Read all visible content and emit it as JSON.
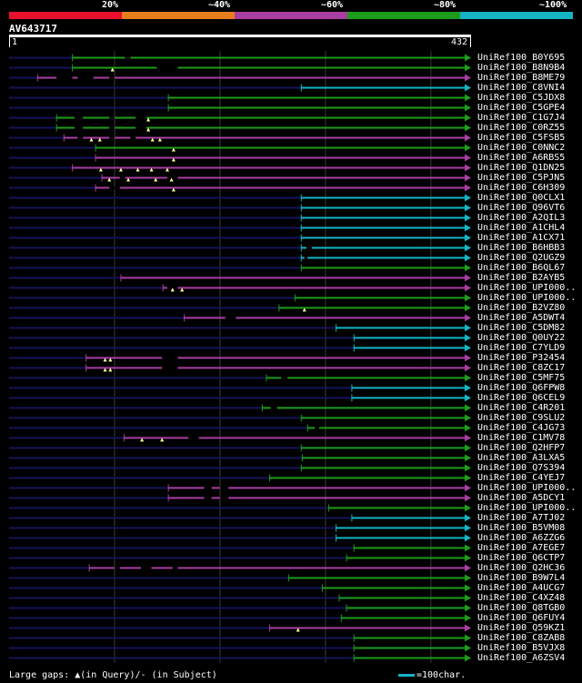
{
  "legend": {
    "colors": [
      "#e8102c",
      "#e87d1e",
      "#a93ea2",
      "#1d9c1d",
      "#14b4c4"
    ],
    "labels": [
      "20%",
      "~40%",
      "~60%",
      "~80%",
      "~100%"
    ]
  },
  "query": {
    "id": "AV643717",
    "start": "1",
    "end": "432",
    "length": 432
  },
  "colors": {
    "magenta": "#a93ea2",
    "green": "#1d9c1d",
    "cyan": "#14b4c4",
    "background_line": "#14145a",
    "gridline": "#3a3a3a",
    "gap_marker": "#ffff99"
  },
  "hits": [
    {
      "name": "UniRef100_B0Y695",
      "color": "green",
      "start": 60,
      "end": 432,
      "gaps_subject": [
        [
          110,
          115
        ]
      ],
      "gaps_query": []
    },
    {
      "name": "UniRef100_B8N9B4",
      "color": "green",
      "start": 60,
      "end": 432,
      "gaps_subject": [
        [
          140,
          160
        ]
      ],
      "gaps_query": [
        98
      ]
    },
    {
      "name": "UniRef100_B8ME79",
      "color": "magenta",
      "start": 27,
      "end": 432,
      "gaps_subject": [
        [
          45,
          60
        ],
        [
          65,
          80
        ],
        [
          95,
          100
        ]
      ],
      "gaps_query": []
    },
    {
      "name": "UniRef100_C8VNI4",
      "color": "cyan",
      "start": 277,
      "end": 432,
      "gaps_subject": [],
      "gaps_query": []
    },
    {
      "name": "UniRef100_C5JDX8",
      "color": "green",
      "start": 151,
      "end": 432,
      "gaps_subject": [],
      "gaps_query": []
    },
    {
      "name": "UniRef100_C5GPE4",
      "color": "green",
      "start": 151,
      "end": 432,
      "gaps_subject": [],
      "gaps_query": []
    },
    {
      "name": "UniRef100_C1G7J4",
      "color": "green",
      "start": 45,
      "end": 432,
      "gaps_subject": [
        [
          62,
          70
        ],
        [
          95,
          100
        ],
        [
          120,
          130
        ]
      ],
      "gaps_query": [
        132
      ]
    },
    {
      "name": "UniRef100_C0RZ55",
      "color": "green",
      "start": 45,
      "end": 432,
      "gaps_subject": [
        [
          62,
          70
        ],
        [
          95,
          100
        ],
        [
          120,
          130
        ]
      ],
      "gaps_query": [
        132
      ]
    },
    {
      "name": "UniRef100_C5FSB5",
      "color": "magenta",
      "start": 52,
      "end": 432,
      "gaps_subject": [
        [
          65,
          70
        ],
        [
          95,
          100
        ],
        [
          115,
          120
        ]
      ],
      "gaps_query": [
        78,
        86,
        136,
        143
      ]
    },
    {
      "name": "UniRef100_C0NNC2",
      "color": "green",
      "start": 82,
      "end": 432,
      "gaps_subject": [],
      "gaps_query": [
        156
      ]
    },
    {
      "name": "UniRef100_A6RBS5",
      "color": "magenta",
      "start": 82,
      "end": 432,
      "gaps_subject": [],
      "gaps_query": [
        156
      ]
    },
    {
      "name": "UniRef100_Q1DN25",
      "color": "magenta",
      "start": 60,
      "end": 432,
      "gaps_subject": [],
      "gaps_query": [
        87,
        106,
        122,
        135,
        150
      ]
    },
    {
      "name": "UniRef100_C5PJN5",
      "color": "magenta",
      "start": 88,
      "end": 432,
      "gaps_subject": [
        [
          105,
          110
        ],
        [
          150,
          160
        ]
      ],
      "gaps_query": [
        95,
        113,
        139,
        154
      ]
    },
    {
      "name": "UniRef100_C6H309",
      "color": "magenta",
      "start": 82,
      "end": 432,
      "gaps_subject": [
        [
          95,
          105
        ]
      ],
      "gaps_query": [
        156
      ]
    },
    {
      "name": "UniRef100_Q0CLX1",
      "color": "cyan",
      "start": 277,
      "end": 432,
      "gaps_subject": [],
      "gaps_query": []
    },
    {
      "name": "UniRef100_Q96VT6",
      "color": "cyan",
      "start": 277,
      "end": 432,
      "gaps_subject": [],
      "gaps_query": []
    },
    {
      "name": "UniRef100_A2QIL3",
      "color": "cyan",
      "start": 277,
      "end": 432,
      "gaps_subject": [],
      "gaps_query": []
    },
    {
      "name": "UniRef100_A1CHL4",
      "color": "cyan",
      "start": 277,
      "end": 432,
      "gaps_subject": [],
      "gaps_query": []
    },
    {
      "name": "UniRef100_A1CX71",
      "color": "cyan",
      "start": 277,
      "end": 432,
      "gaps_subject": [],
      "gaps_query": []
    },
    {
      "name": "UniRef100_B6HBB3",
      "color": "cyan",
      "start": 277,
      "end": 432,
      "gaps_subject": [
        [
          282,
          287
        ]
      ],
      "gaps_query": []
    },
    {
      "name": "UniRef100_Q2UGZ9",
      "color": "cyan",
      "start": 277,
      "end": 432,
      "gaps_subject": [
        [
          280,
          283
        ]
      ],
      "gaps_query": []
    },
    {
      "name": "UniRef100_B6QL67",
      "color": "green",
      "start": 277,
      "end": 432,
      "gaps_subject": [],
      "gaps_query": []
    },
    {
      "name": "UniRef100_B2AYB5",
      "color": "magenta",
      "start": 106,
      "end": 432,
      "gaps_subject": [],
      "gaps_query": []
    },
    {
      "name": "UniRef100_UPI000..",
      "color": "magenta",
      "start": 146,
      "end": 432,
      "gaps_subject": [
        [
          150,
          160
        ]
      ],
      "gaps_query": [
        155,
        164
      ]
    },
    {
      "name": "UniRef100_UPI000..",
      "color": "green",
      "start": 271,
      "end": 432,
      "gaps_subject": [],
      "gaps_query": []
    },
    {
      "name": "UniRef100_B2VZ80",
      "color": "green",
      "start": 256,
      "end": 432,
      "gaps_subject": [],
      "gaps_query": [
        280
      ]
    },
    {
      "name": "UniRef100_A5DWT4",
      "color": "magenta",
      "start": 166,
      "end": 432,
      "gaps_subject": [
        [
          205,
          215
        ]
      ],
      "gaps_query": []
    },
    {
      "name": "UniRef100_C5DM82",
      "color": "cyan",
      "start": 310,
      "end": 432,
      "gaps_subject": [],
      "gaps_query": []
    },
    {
      "name": "UniRef100_Q0UY22",
      "color": "cyan",
      "start": 327,
      "end": 432,
      "gaps_subject": [],
      "gaps_query": []
    },
    {
      "name": "UniRef100_C7YLD9",
      "color": "cyan",
      "start": 327,
      "end": 432,
      "gaps_subject": [],
      "gaps_query": []
    },
    {
      "name": "UniRef100_P32454",
      "color": "magenta",
      "start": 73,
      "end": 432,
      "gaps_subject": [
        [
          145,
          160
        ]
      ],
      "gaps_query": [
        91,
        96
      ]
    },
    {
      "name": "UniRef100_C8ZC17",
      "color": "magenta",
      "start": 73,
      "end": 432,
      "gaps_subject": [
        [
          145,
          160
        ]
      ],
      "gaps_query": [
        91,
        96
      ]
    },
    {
      "name": "UniRef100_C5MF75",
      "color": "green",
      "start": 244,
      "end": 432,
      "gaps_subject": [
        [
          258,
          264
        ]
      ],
      "gaps_query": []
    },
    {
      "name": "UniRef100_Q6FPW8",
      "color": "cyan",
      "start": 325,
      "end": 432,
      "gaps_subject": [],
      "gaps_query": []
    },
    {
      "name": "UniRef100_Q6CEL9",
      "color": "cyan",
      "start": 325,
      "end": 432,
      "gaps_subject": [],
      "gaps_query": []
    },
    {
      "name": "UniRef100_C4R201",
      "color": "green",
      "start": 240,
      "end": 432,
      "gaps_subject": [
        [
          248,
          254
        ]
      ],
      "gaps_query": []
    },
    {
      "name": "UniRef100_C9SLU2",
      "color": "green",
      "start": 277,
      "end": 432,
      "gaps_subject": [],
      "gaps_query": []
    },
    {
      "name": "UniRef100_C4JG73",
      "color": "green",
      "start": 283,
      "end": 432,
      "gaps_subject": [
        [
          290,
          294
        ]
      ],
      "gaps_query": []
    },
    {
      "name": "UniRef100_C1MV78",
      "color": "magenta",
      "start": 109,
      "end": 432,
      "gaps_subject": [
        [
          170,
          180
        ]
      ],
      "gaps_query": [
        126,
        145
      ]
    },
    {
      "name": "UniRef100_Q2HFP7",
      "color": "green",
      "start": 277,
      "end": 432,
      "gaps_subject": [],
      "gaps_query": []
    },
    {
      "name": "UniRef100_A3LXA5",
      "color": "green",
      "start": 278,
      "end": 432,
      "gaps_subject": [],
      "gaps_query": []
    },
    {
      "name": "UniRef100_Q7S394",
      "color": "green",
      "start": 277,
      "end": 432,
      "gaps_subject": [],
      "gaps_query": []
    },
    {
      "name": "UniRef100_C4YEJ7",
      "color": "green",
      "start": 247,
      "end": 432,
      "gaps_subject": [],
      "gaps_query": []
    },
    {
      "name": "UniRef100_UPI000..",
      "color": "magenta",
      "start": 151,
      "end": 432,
      "gaps_subject": [
        [
          185,
          192
        ],
        [
          200,
          208
        ]
      ],
      "gaps_query": []
    },
    {
      "name": "UniRef100_A5DCY1",
      "color": "magenta",
      "start": 151,
      "end": 432,
      "gaps_subject": [
        [
          185,
          192
        ],
        [
          200,
          208
        ]
      ],
      "gaps_query": []
    },
    {
      "name": "UniRef100_UPI000..",
      "color": "green",
      "start": 303,
      "end": 432,
      "gaps_subject": [],
      "gaps_query": []
    },
    {
      "name": "UniRef100_A7TJ02",
      "color": "cyan",
      "start": 325,
      "end": 432,
      "gaps_subject": [],
      "gaps_query": []
    },
    {
      "name": "UniRef100_B5VM08",
      "color": "cyan",
      "start": 310,
      "end": 432,
      "gaps_subject": [],
      "gaps_query": []
    },
    {
      "name": "UniRef100_A6ZZG6",
      "color": "cyan",
      "start": 310,
      "end": 432,
      "gaps_subject": [],
      "gaps_query": []
    },
    {
      "name": "UniRef100_A7EGE7",
      "color": "green",
      "start": 327,
      "end": 432,
      "gaps_subject": [],
      "gaps_query": []
    },
    {
      "name": "UniRef100_Q6CTP7",
      "color": "green",
      "start": 320,
      "end": 432,
      "gaps_subject": [],
      "gaps_query": []
    },
    {
      "name": "UniRef100_Q2HC36",
      "color": "magenta",
      "start": 76,
      "end": 432,
      "gaps_subject": [
        [
          100,
          105
        ],
        [
          125,
          135
        ],
        [
          155,
          160
        ]
      ],
      "gaps_query": []
    },
    {
      "name": "UniRef100_B9W7L4",
      "color": "green",
      "start": 265,
      "end": 432,
      "gaps_subject": [],
      "gaps_query": []
    },
    {
      "name": "UniRef100_A4UCG7",
      "color": "green",
      "start": 297,
      "end": 432,
      "gaps_subject": [],
      "gaps_query": []
    },
    {
      "name": "UniRef100_C4XZ48",
      "color": "green",
      "start": 313,
      "end": 432,
      "gaps_subject": [],
      "gaps_query": []
    },
    {
      "name": "UniRef100_Q8TGB0",
      "color": "green",
      "start": 320,
      "end": 432,
      "gaps_subject": [],
      "gaps_query": []
    },
    {
      "name": "UniRef100_Q6FUY4",
      "color": "green",
      "start": 315,
      "end": 432,
      "gaps_subject": [],
      "gaps_query": []
    },
    {
      "name": "UniRef100_Q59KZ1",
      "color": "magenta",
      "start": 247,
      "end": 432,
      "gaps_subject": [],
      "gaps_query": [
        274
      ]
    },
    {
      "name": "UniRef100_C8ZAB8",
      "color": "green",
      "start": 327,
      "end": 432,
      "gaps_subject": [],
      "gaps_query": []
    },
    {
      "name": "UniRef100_B5VJX8",
      "color": "green",
      "start": 327,
      "end": 432,
      "gaps_subject": [],
      "gaps_query": []
    },
    {
      "name": "UniRef100_A6ZSV4",
      "color": "green",
      "start": 327,
      "end": 432,
      "gaps_subject": [],
      "gaps_query": []
    }
  ],
  "footer": {
    "legend_text": "Large gaps: ▲(in Query)/- (in Subject)",
    "scale_text": "=100char."
  }
}
